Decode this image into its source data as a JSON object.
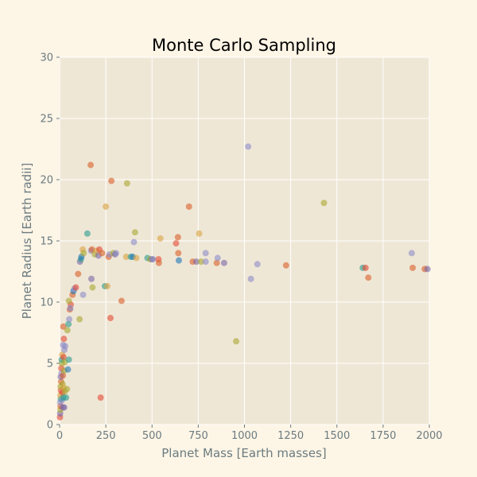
{
  "chart_data": {
    "type": "scatter",
    "title": "Monte Carlo Sampling",
    "xlabel": "Planet Mass [Earth masses]",
    "ylabel": "Planet Radius [Earth radii]",
    "xlim": [
      0,
      2000
    ],
    "ylim": [
      0,
      30
    ],
    "xticks": [
      "0",
      "250",
      "500",
      "750",
      "1000",
      "1250",
      "1500",
      "1750",
      "2000"
    ],
    "yticks": [
      "0",
      "5",
      "10",
      "15",
      "20",
      "25",
      "30"
    ],
    "grid": true,
    "legend": "none",
    "colors": {
      "figure_background": "#fdf5e6",
      "plot_background": "#efe7d6",
      "grid": "#ffffff",
      "text": "#6b7b80",
      "palette": [
        "#1f77b4",
        "#d95f28",
        "#2a9d8f",
        "#8c8cc8",
        "#a8a832",
        "#d9a441",
        "#e24a33",
        "#7a68a6"
      ]
    },
    "points": [
      {
        "x": 2,
        "y": 0.6,
        "c": 6
      },
      {
        "x": 3,
        "y": 0.9,
        "c": 7
      },
      {
        "x": 4,
        "y": 1.2,
        "c": 4
      },
      {
        "x": 5,
        "y": 1.5,
        "c": 1
      },
      {
        "x": 3,
        "y": 1.8,
        "c": 3
      },
      {
        "x": 6,
        "y": 2.1,
        "c": 2
      },
      {
        "x": 4,
        "y": 2.4,
        "c": 5
      },
      {
        "x": 7,
        "y": 2.8,
        "c": 6
      },
      {
        "x": 5,
        "y": 3.1,
        "c": 4
      },
      {
        "x": 8,
        "y": 3.5,
        "c": 1
      },
      {
        "x": 6,
        "y": 3.9,
        "c": 7
      },
      {
        "x": 10,
        "y": 4.2,
        "c": 3
      },
      {
        "x": 9,
        "y": 4.6,
        "c": 6
      },
      {
        "x": 12,
        "y": 5.0,
        "c": 4
      },
      {
        "x": 11,
        "y": 5.3,
        "c": 2
      },
      {
        "x": 14,
        "y": 5.7,
        "c": 5
      },
      {
        "x": 13,
        "y": 2.0,
        "c": 3
      },
      {
        "x": 15,
        "y": 2.6,
        "c": 6
      },
      {
        "x": 16,
        "y": 3.3,
        "c": 4
      },
      {
        "x": 18,
        "y": 4.0,
        "c": 1
      },
      {
        "x": 17,
        "y": 1.4,
        "c": 7
      },
      {
        "x": 20,
        "y": 2.2,
        "c": 2
      },
      {
        "x": 22,
        "y": 3.0,
        "c": 5
      },
      {
        "x": 24,
        "y": 4.4,
        "c": 4
      },
      {
        "x": 21,
        "y": 5.5,
        "c": 6
      },
      {
        "x": 26,
        "y": 6.1,
        "c": 3
      },
      {
        "x": 19,
        "y": 6.5,
        "c": 3
      },
      {
        "x": 23,
        "y": 7.0,
        "c": 6
      },
      {
        "x": 20,
        "y": 8.0,
        "c": 1
      },
      {
        "x": 30,
        "y": 6.4,
        "c": 3
      },
      {
        "x": 28,
        "y": 5.1,
        "c": 4
      },
      {
        "x": 25,
        "y": 1.4,
        "c": 7
      },
      {
        "x": 29,
        "y": 2.7,
        "c": 4
      },
      {
        "x": 35,
        "y": 2.2,
        "c": 2
      },
      {
        "x": 40,
        "y": 2.9,
        "c": 4
      },
      {
        "x": 45,
        "y": 4.5,
        "c": 0
      },
      {
        "x": 50,
        "y": 5.3,
        "c": 2
      },
      {
        "x": 42,
        "y": 7.7,
        "c": 4
      },
      {
        "x": 48,
        "y": 8.2,
        "c": 2
      },
      {
        "x": 52,
        "y": 8.6,
        "c": 3
      },
      {
        "x": 55,
        "y": 9.4,
        "c": 1
      },
      {
        "x": 60,
        "y": 9.8,
        "c": 6
      },
      {
        "x": 50,
        "y": 10.1,
        "c": 4
      },
      {
        "x": 58,
        "y": 9.5,
        "c": 3
      },
      {
        "x": 70,
        "y": 10.6,
        "c": 1
      },
      {
        "x": 75,
        "y": 10.9,
        "c": 0
      },
      {
        "x": 80,
        "y": 11.1,
        "c": 3
      },
      {
        "x": 88,
        "y": 11.2,
        "c": 6
      },
      {
        "x": 100,
        "y": 12.3,
        "c": 1
      },
      {
        "x": 110,
        "y": 13.3,
        "c": 7
      },
      {
        "x": 115,
        "y": 13.5,
        "c": 2
      },
      {
        "x": 118,
        "y": 13.7,
        "c": 0
      },
      {
        "x": 125,
        "y": 14.3,
        "c": 5
      },
      {
        "x": 130,
        "y": 14.0,
        "c": 4
      },
      {
        "x": 108,
        "y": 8.6,
        "c": 4
      },
      {
        "x": 127,
        "y": 10.6,
        "c": 3
      },
      {
        "x": 150,
        "y": 15.6,
        "c": 2
      },
      {
        "x": 170,
        "y": 14.2,
        "c": 3
      },
      {
        "x": 175,
        "y": 14.3,
        "c": 1
      },
      {
        "x": 172,
        "y": 11.9,
        "c": 7
      },
      {
        "x": 178,
        "y": 11.2,
        "c": 4
      },
      {
        "x": 168,
        "y": 21.2,
        "c": 1
      },
      {
        "x": 190,
        "y": 13.9,
        "c": 4
      },
      {
        "x": 200,
        "y": 14.2,
        "c": 5
      },
      {
        "x": 210,
        "y": 13.8,
        "c": 7
      },
      {
        "x": 215,
        "y": 14.3,
        "c": 6
      },
      {
        "x": 230,
        "y": 14.0,
        "c": 1
      },
      {
        "x": 222,
        "y": 2.2,
        "c": 6
      },
      {
        "x": 245,
        "y": 11.3,
        "c": 2
      },
      {
        "x": 258,
        "y": 11.3,
        "c": 5
      },
      {
        "x": 250,
        "y": 17.8,
        "c": 5
      },
      {
        "x": 265,
        "y": 13.7,
        "c": 1
      },
      {
        "x": 270,
        "y": 13.9,
        "c": 3
      },
      {
        "x": 275,
        "y": 8.7,
        "c": 6
      },
      {
        "x": 280,
        "y": 19.9,
        "c": 1
      },
      {
        "x": 290,
        "y": 14.0,
        "c": 4
      },
      {
        "x": 300,
        "y": 13.9,
        "c": 7
      },
      {
        "x": 305,
        "y": 14.0,
        "c": 3
      },
      {
        "x": 335,
        "y": 10.1,
        "c": 1
      },
      {
        "x": 360,
        "y": 13.7,
        "c": 5
      },
      {
        "x": 365,
        "y": 19.7,
        "c": 4
      },
      {
        "x": 385,
        "y": 13.7,
        "c": 2
      },
      {
        "x": 395,
        "y": 13.7,
        "c": 0
      },
      {
        "x": 402,
        "y": 14.9,
        "c": 3
      },
      {
        "x": 408,
        "y": 15.7,
        "c": 4
      },
      {
        "x": 415,
        "y": 13.6,
        "c": 5
      },
      {
        "x": 475,
        "y": 13.6,
        "c": 2
      },
      {
        "x": 490,
        "y": 13.5,
        "c": 4
      },
      {
        "x": 500,
        "y": 13.5,
        "c": 7
      },
      {
        "x": 505,
        "y": 13.5,
        "c": 3
      },
      {
        "x": 535,
        "y": 13.5,
        "c": 6
      },
      {
        "x": 537,
        "y": 13.2,
        "c": 1
      },
      {
        "x": 545,
        "y": 15.2,
        "c": 5
      },
      {
        "x": 630,
        "y": 14.8,
        "c": 6
      },
      {
        "x": 640,
        "y": 15.3,
        "c": 1
      },
      {
        "x": 642,
        "y": 14.0,
        "c": 1
      },
      {
        "x": 645,
        "y": 13.4,
        "c": 0
      },
      {
        "x": 700,
        "y": 17.8,
        "c": 1
      },
      {
        "x": 720,
        "y": 13.3,
        "c": 1
      },
      {
        "x": 740,
        "y": 13.3,
        "c": 7
      },
      {
        "x": 755,
        "y": 15.6,
        "c": 5
      },
      {
        "x": 765,
        "y": 13.3,
        "c": 4
      },
      {
        "x": 790,
        "y": 13.3,
        "c": 3
      },
      {
        "x": 790,
        "y": 14.0,
        "c": 3
      },
      {
        "x": 850,
        "y": 13.2,
        "c": 1
      },
      {
        "x": 855,
        "y": 13.6,
        "c": 3
      },
      {
        "x": 890,
        "y": 13.2,
        "c": 7
      },
      {
        "x": 955,
        "y": 6.8,
        "c": 4
      },
      {
        "x": 1020,
        "y": 22.7,
        "c": 3
      },
      {
        "x": 1035,
        "y": 11.9,
        "c": 3
      },
      {
        "x": 1070,
        "y": 13.1,
        "c": 3
      },
      {
        "x": 1225,
        "y": 13.0,
        "c": 1
      },
      {
        "x": 1430,
        "y": 18.1,
        "c": 4
      },
      {
        "x": 1640,
        "y": 12.8,
        "c": 2
      },
      {
        "x": 1655,
        "y": 12.8,
        "c": 6
      },
      {
        "x": 1670,
        "y": 12.0,
        "c": 1
      },
      {
        "x": 1905,
        "y": 14.0,
        "c": 3
      },
      {
        "x": 1910,
        "y": 12.8,
        "c": 1
      },
      {
        "x": 1975,
        "y": 12.7,
        "c": 1
      },
      {
        "x": 1990,
        "y": 12.7,
        "c": 7
      }
    ]
  }
}
